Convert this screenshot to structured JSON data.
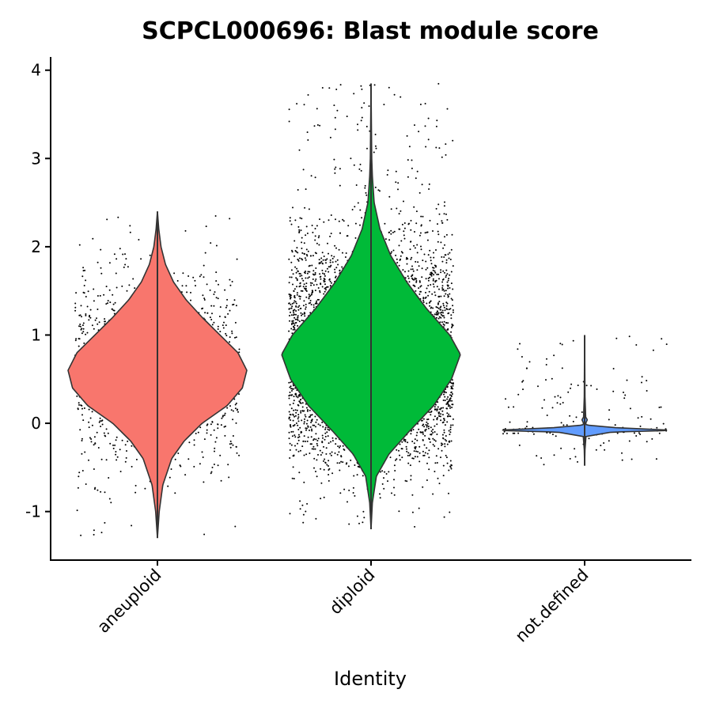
{
  "chart_data": {
    "type": "violin",
    "title": "SCPCL000696: Blast module score",
    "xlabel": "Identity",
    "ylabel": "",
    "ylim": [
      -1.55,
      4.15
    ],
    "y_ticks": [
      -1,
      0,
      1,
      2,
      3,
      4
    ],
    "y_tick_labels": [
      "-1",
      "0",
      "1",
      "2",
      "3",
      "4"
    ],
    "grid": false,
    "legend": "none",
    "categories": [
      "aneuploid",
      "diploid",
      "not.defined"
    ],
    "series": [
      {
        "category": "aneuploid",
        "color": "#F8766D",
        "y_min": -1.3,
        "y_max": 2.4,
        "widest_at": 0.6,
        "point_count": 1300,
        "point_y_range": [
          -1.3,
          2.4
        ],
        "density": [
          [
            -1.3,
            0.0
          ],
          [
            -1.0,
            0.02
          ],
          [
            -0.7,
            0.06
          ],
          [
            -0.4,
            0.16
          ],
          [
            -0.2,
            0.3
          ],
          [
            0.0,
            0.5
          ],
          [
            0.2,
            0.78
          ],
          [
            0.4,
            0.95
          ],
          [
            0.6,
            1.0
          ],
          [
            0.8,
            0.9
          ],
          [
            1.0,
            0.7
          ],
          [
            1.2,
            0.5
          ],
          [
            1.4,
            0.32
          ],
          [
            1.6,
            0.18
          ],
          [
            1.8,
            0.09
          ],
          [
            2.0,
            0.04
          ],
          [
            2.2,
            0.015
          ],
          [
            2.4,
            0.0
          ]
        ]
      },
      {
        "category": "diploid",
        "color": "#00BA38",
        "y_min": -1.2,
        "y_max": 3.85,
        "widest_at": 0.78,
        "point_count": 5000,
        "point_y_range": [
          -1.2,
          3.85
        ],
        "density": [
          [
            -1.2,
            0.0
          ],
          [
            -0.9,
            0.015
          ],
          [
            -0.6,
            0.06
          ],
          [
            -0.35,
            0.2
          ],
          [
            -0.1,
            0.42
          ],
          [
            0.2,
            0.7
          ],
          [
            0.5,
            0.9
          ],
          [
            0.78,
            1.0
          ],
          [
            1.0,
            0.88
          ],
          [
            1.3,
            0.62
          ],
          [
            1.6,
            0.4
          ],
          [
            1.9,
            0.22
          ],
          [
            2.2,
            0.1
          ],
          [
            2.5,
            0.035
          ],
          [
            2.8,
            0.015
          ],
          [
            3.0,
            0.008
          ],
          [
            3.4,
            0.004
          ],
          [
            3.85,
            0.0
          ]
        ]
      },
      {
        "category": "not.defined",
        "color": "#619CFF",
        "y_min": -0.48,
        "y_max": 1.0,
        "widest_at": -0.08,
        "point_count": 220,
        "point_y_range": [
          -0.48,
          1.0
        ],
        "density": [
          [
            -0.48,
            0.0
          ],
          [
            -0.3,
            0.004
          ],
          [
            -0.15,
            0.015
          ],
          [
            -0.1,
            0.3
          ],
          [
            -0.08,
            1.0
          ],
          [
            -0.05,
            0.35
          ],
          [
            -0.02,
            0.02
          ],
          [
            0.0,
            0.012
          ],
          [
            0.04,
            0.03
          ],
          [
            0.07,
            0.012
          ],
          [
            0.3,
            0.004
          ],
          [
            1.0,
            0.0
          ]
        ]
      }
    ]
  }
}
